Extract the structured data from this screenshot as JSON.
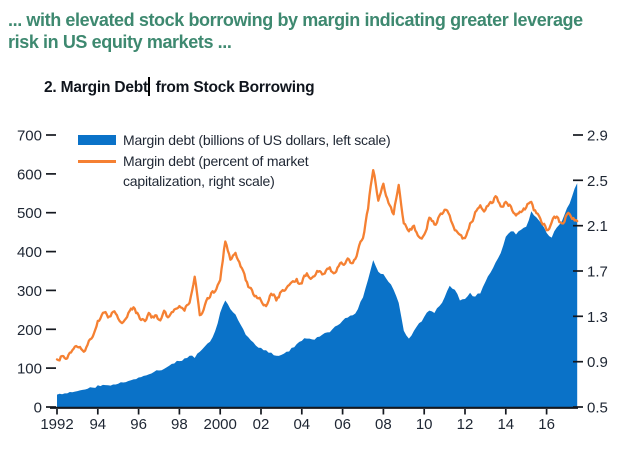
{
  "headline": {
    "line1": "... with elevated stock borrowing by margin indicating greater leverage",
    "line2": "risk in US equity markets ...",
    "color": "#3E8970"
  },
  "panel": {
    "title_before_cursor": "2. Margin Debt",
    "title_after_cursor": " from Stock Borrowing"
  },
  "colors": {
    "area_blue": "#0A72C8",
    "line_orange": "#F58032",
    "axis_text": "#1E2633",
    "axis_line": "#14181F",
    "headline_teal": "#3E8970"
  },
  "chart_data": {
    "type": "area",
    "title": "2. Margin Debt from Stock Borrowing",
    "xlabel": "",
    "ylabel_left": "Margin debt (billions of US dollars)",
    "ylabel_right": "Margin debt (percent of market capitalization)",
    "xlim": [
      1992,
      2017.5
    ],
    "left_axis": {
      "range": [
        0,
        700
      ],
      "ticks": [
        0,
        100,
        200,
        300,
        400,
        500,
        600,
        700
      ]
    },
    "right_axis": {
      "range": [
        0.5,
        2.9
      ],
      "ticks": [
        0.5,
        0.9,
        1.3,
        1.7,
        2.1,
        2.5,
        2.9
      ]
    },
    "x_axis": {
      "ticks": [
        {
          "year": 1992,
          "label": "1992"
        },
        {
          "year": 1994,
          "label": "94"
        },
        {
          "year": 1996,
          "label": "96"
        },
        {
          "year": 1998,
          "label": "98"
        },
        {
          "year": 2000,
          "label": "2000"
        },
        {
          "year": 2002,
          "label": "02"
        },
        {
          "year": 2004,
          "label": "04"
        },
        {
          "year": 2006,
          "label": "06"
        },
        {
          "year": 2008,
          "label": "08"
        },
        {
          "year": 2010,
          "label": "10"
        },
        {
          "year": 2012,
          "label": "12"
        },
        {
          "year": 2014,
          "label": "14"
        },
        {
          "year": 2016,
          "label": "16"
        }
      ]
    },
    "x": [
      1992,
      1992.25,
      1992.5,
      1992.75,
      1993,
      1993.25,
      1993.5,
      1993.75,
      1994,
      1994.25,
      1994.5,
      1994.75,
      1995,
      1995.25,
      1995.5,
      1995.75,
      1996,
      1996.25,
      1996.5,
      1996.75,
      1997,
      1997.25,
      1997.5,
      1997.75,
      1998,
      1998.25,
      1998.5,
      1998.75,
      1999,
      1999.25,
      1999.5,
      1999.75,
      2000,
      2000.25,
      2000.5,
      2000.75,
      2001,
      2001.25,
      2001.5,
      2001.75,
      2002,
      2002.25,
      2002.5,
      2002.75,
      2003,
      2003.25,
      2003.5,
      2003.75,
      2004,
      2004.25,
      2004.5,
      2004.75,
      2005,
      2005.25,
      2005.5,
      2005.75,
      2006,
      2006.25,
      2006.5,
      2006.75,
      2007,
      2007.25,
      2007.5,
      2007.75,
      2008,
      2008.25,
      2008.5,
      2008.75,
      2009,
      2009.25,
      2009.5,
      2009.75,
      2010,
      2010.25,
      2010.5,
      2010.75,
      2011,
      2011.25,
      2011.5,
      2011.75,
      2012,
      2012.25,
      2012.5,
      2012.75,
      2013,
      2013.25,
      2013.5,
      2013.75,
      2014,
      2014.25,
      2014.5,
      2014.75,
      2015,
      2015.25,
      2015.5,
      2015.75,
      2016,
      2016.25,
      2016.5,
      2016.75,
      2017,
      2017.25,
      2017.5
    ],
    "series": [
      {
        "name": "Margin debt (billions of US dollars)",
        "legend": "Margin debt (billions of US dollars, left scale)",
        "axis": "left",
        "style": "area",
        "color": "#0A72C8",
        "values": [
          32,
          33,
          35,
          38,
          41,
          44,
          47,
          50,
          56,
          57,
          56,
          58,
          60,
          63,
          67,
          71,
          76,
          80,
          84,
          90,
          94,
          98,
          106,
          112,
          118,
          125,
          132,
          126,
          142,
          156,
          168,
          195,
          243,
          274,
          252,
          238,
          212,
          186,
          172,
          158,
          152,
          146,
          140,
          132,
          134,
          142,
          152,
          162,
          170,
          176,
          174,
          180,
          186,
          192,
          200,
          210,
          222,
          230,
          236,
          252,
          282,
          328,
          378,
          348,
          342,
          322,
          302,
          268,
          196,
          176,
          196,
          216,
          232,
          248,
          242,
          260,
          282,
          312,
          302,
          274,
          278,
          294,
          284,
          292,
          322,
          346,
          372,
          396,
          438,
          452,
          444,
          456,
          464,
          504,
          488,
          472,
          448,
          436,
          462,
          478,
          512,
          542,
          576
        ]
      },
      {
        "name": "Margin debt (percent of market capitalization)",
        "legend_lines": [
          "Margin debt (percent of market",
          "capitalization, right scale)"
        ],
        "axis": "right",
        "style": "line",
        "color": "#F58032",
        "values": [
          0.92,
          0.95,
          0.93,
          1.0,
          1.03,
          1.0,
          1.05,
          1.12,
          1.26,
          1.33,
          1.29,
          1.34,
          1.28,
          1.25,
          1.33,
          1.38,
          1.31,
          1.27,
          1.33,
          1.29,
          1.27,
          1.35,
          1.3,
          1.36,
          1.39,
          1.35,
          1.42,
          1.65,
          1.31,
          1.4,
          1.47,
          1.52,
          1.62,
          1.96,
          1.8,
          1.86,
          1.74,
          1.62,
          1.55,
          1.48,
          1.44,
          1.39,
          1.5,
          1.44,
          1.52,
          1.55,
          1.6,
          1.63,
          1.59,
          1.68,
          1.64,
          1.7,
          1.67,
          1.72,
          1.69,
          1.73,
          1.76,
          1.81,
          1.77,
          1.88,
          1.99,
          2.25,
          2.59,
          2.32,
          2.47,
          2.3,
          2.2,
          2.46,
          2.12,
          2.05,
          2.1,
          2.0,
          2.02,
          2.17,
          2.11,
          2.19,
          2.24,
          2.19,
          2.06,
          2.02,
          1.99,
          2.12,
          2.22,
          2.28,
          2.24,
          2.31,
          2.36,
          2.27,
          2.31,
          2.27,
          2.19,
          2.22,
          2.26,
          2.31,
          2.21,
          2.13,
          2.06,
          2.13,
          2.18,
          2.12,
          2.2,
          2.16,
          2.14
        ]
      }
    ]
  }
}
